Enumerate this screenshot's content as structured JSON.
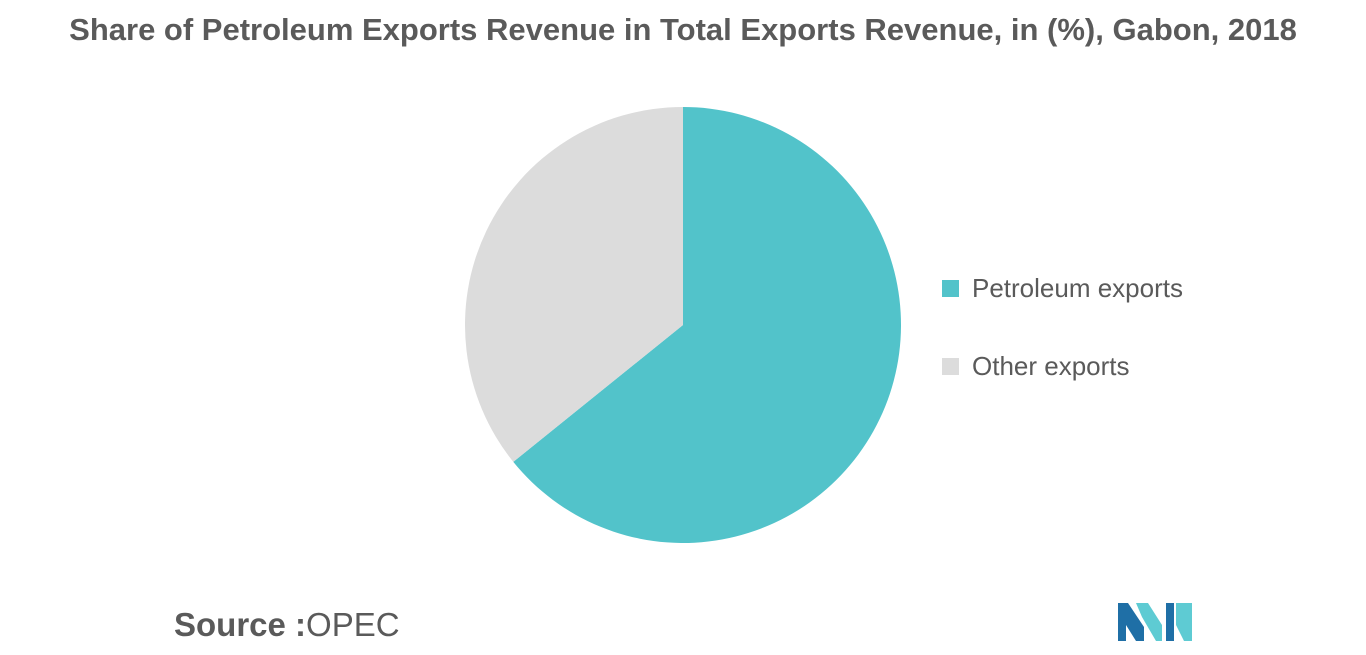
{
  "chart_data": {
    "type": "pie",
    "title": "Share of Petroleum Exports Revenue in Total Exports Revenue, in (%), Gabon, 2018",
    "slices": [
      {
        "label": "Petroleum exports",
        "value": 64.2,
        "color": "#52c3ca"
      },
      {
        "label": "Other exports",
        "value": 35.8,
        "color": "#dcdcdc"
      }
    ],
    "legend_position": "right"
  },
  "source": {
    "prefix": "Source :",
    "name": "OPEC"
  },
  "logo": {
    "icon": "mordor-intelligence-logo",
    "colors": [
      "#1f6fa6",
      "#5ecbd3"
    ]
  }
}
